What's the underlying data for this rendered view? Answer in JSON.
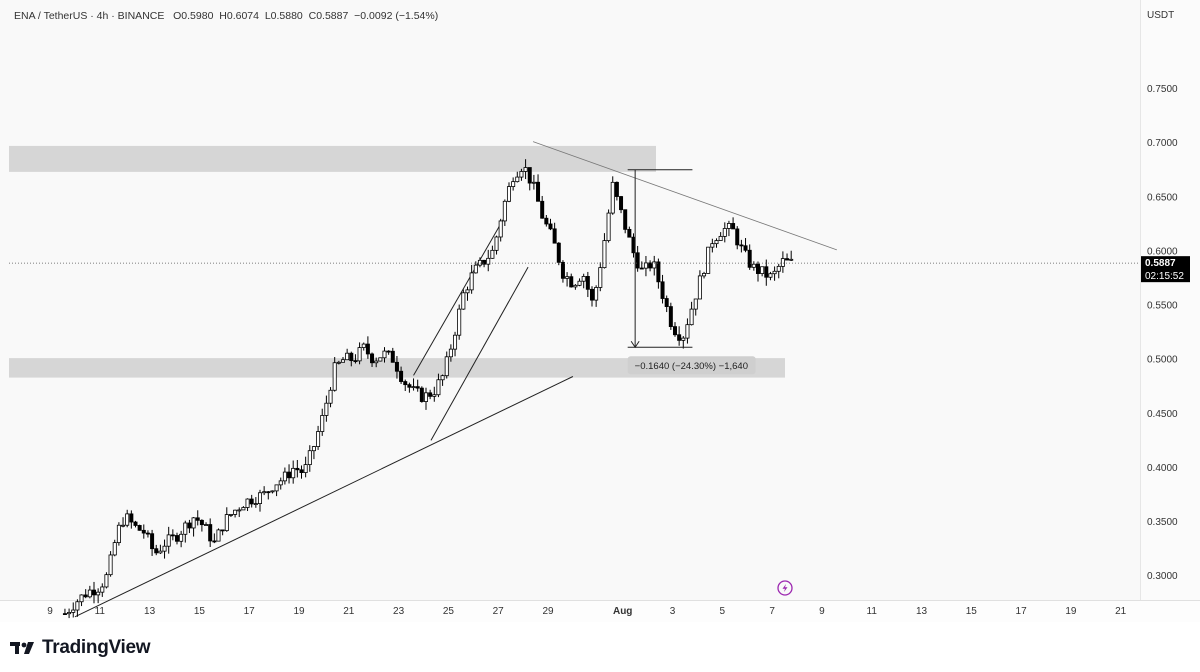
{
  "header": {
    "symbol": "ENA / TetherUS · 4h · BINANCE",
    "ohlc": {
      "open": "O0.5980",
      "high": "H0.6074",
      "low": "L0.5880",
      "close": "C0.5887"
    },
    "change": "−0.0092 (−1.54%)",
    "currency": "USDT"
  },
  "current_price": {
    "value": "0.5887",
    "countdown": "02:15:52",
    "level": 0.5887
  },
  "measure_label": "−0.1640 (−24.30%) −1,640",
  "brand": {
    "name": "TradingView"
  },
  "colors": {
    "up": "#000000",
    "down": "#000000",
    "zone": "#d6d6d6",
    "label_bg": "#cfcfcf",
    "price_tag": "#000000",
    "marker": "#9c27b0"
  },
  "chart_data": {
    "type": "candlestick",
    "symbol": "ENA / TetherUS",
    "interval": "4h",
    "exchange": "BINANCE",
    "y_ticks": [
      0.3,
      0.35,
      0.4,
      0.45,
      0.5,
      0.55,
      0.6,
      0.65,
      0.7,
      0.75
    ],
    "y_tick_labels": [
      "0.3000",
      "0.3500",
      "0.4000",
      "0.4500",
      "0.5000",
      "0.5500",
      "0.6000",
      "0.6500",
      "0.7000",
      "0.7500"
    ],
    "ylim": [
      0.26,
      0.805
    ],
    "x_tick_labels": [
      "9",
      "11",
      "13",
      "15",
      "17",
      "19",
      "21",
      "23",
      "25",
      "27",
      "29",
      "Aug",
      "3",
      "5",
      "7",
      "9",
      "11",
      "13",
      "15",
      "17",
      "19",
      "21"
    ],
    "x_tick_days": [
      9,
      11,
      13,
      15,
      17,
      19,
      21,
      23,
      25,
      27,
      29,
      32,
      34,
      36,
      38,
      40,
      42,
      44,
      46,
      48,
      50,
      52
    ],
    "xlim_days": [
      9,
      54
    ],
    "first_candle_day": 9.6,
    "candles_per_day": 6,
    "close_path": [
      [
        9.6,
        0.265
      ],
      [
        10.0,
        0.275
      ],
      [
        10.5,
        0.285
      ],
      [
        11.0,
        0.29
      ],
      [
        11.3,
        0.3
      ],
      [
        11.7,
        0.34
      ],
      [
        12.0,
        0.355
      ],
      [
        12.4,
        0.345
      ],
      [
        12.8,
        0.34
      ],
      [
        13.2,
        0.32
      ],
      [
        13.6,
        0.33
      ],
      [
        14.0,
        0.335
      ],
      [
        14.4,
        0.345
      ],
      [
        14.8,
        0.355
      ],
      [
        15.2,
        0.345
      ],
      [
        15.6,
        0.33
      ],
      [
        16.0,
        0.35
      ],
      [
        16.4,
        0.36
      ],
      [
        16.8,
        0.368
      ],
      [
        17.2,
        0.372
      ],
      [
        17.6,
        0.375
      ],
      [
        18.0,
        0.385
      ],
      [
        18.4,
        0.39
      ],
      [
        18.8,
        0.4
      ],
      [
        19.2,
        0.395
      ],
      [
        19.6,
        0.42
      ],
      [
        20.0,
        0.45
      ],
      [
        20.4,
        0.49
      ],
      [
        20.8,
        0.5
      ],
      [
        21.2,
        0.5
      ],
      [
        21.6,
        0.51
      ],
      [
        22.0,
        0.5
      ],
      [
        22.4,
        0.505
      ],
      [
        22.8,
        0.5
      ],
      [
        23.2,
        0.48
      ],
      [
        23.6,
        0.47
      ],
      [
        24.0,
        0.465
      ],
      [
        24.4,
        0.47
      ],
      [
        24.8,
        0.485
      ],
      [
        25.2,
        0.52
      ],
      [
        25.6,
        0.56
      ],
      [
        26.0,
        0.58
      ],
      [
        26.4,
        0.59
      ],
      [
        26.8,
        0.6
      ],
      [
        27.2,
        0.64
      ],
      [
        27.6,
        0.67
      ],
      [
        28.0,
        0.68
      ],
      [
        28.4,
        0.66
      ],
      [
        28.8,
        0.63
      ],
      [
        29.2,
        0.61
      ],
      [
        29.6,
        0.58
      ],
      [
        30.0,
        0.57
      ],
      [
        30.4,
        0.58
      ],
      [
        30.8,
        0.55
      ],
      [
        31.2,
        0.6
      ],
      [
        31.6,
        0.66
      ],
      [
        32.0,
        0.63
      ],
      [
        32.4,
        0.6
      ],
      [
        32.8,
        0.58
      ],
      [
        33.2,
        0.59
      ],
      [
        33.6,
        0.56
      ],
      [
        34.0,
        0.53
      ],
      [
        34.4,
        0.52
      ],
      [
        34.8,
        0.55
      ],
      [
        35.2,
        0.58
      ],
      [
        35.6,
        0.61
      ],
      [
        36.0,
        0.62
      ],
      [
        36.4,
        0.62
      ],
      [
        36.8,
        0.6
      ],
      [
        37.2,
        0.585
      ],
      [
        37.6,
        0.58
      ],
      [
        38.0,
        0.575
      ],
      [
        38.4,
        0.59
      ],
      [
        38.8,
        0.5887
      ]
    ],
    "price_line": 0.5887,
    "zones": [
      {
        "from": 0.673,
        "to": 0.697
      },
      {
        "from": 0.483,
        "to": 0.501
      }
    ],
    "trendlines": [
      {
        "name": "rising-support",
        "from": [
          10.0,
          0.262
        ],
        "to": [
          30.0,
          0.484
        ]
      },
      {
        "name": "descending-resistance",
        "from": [
          28.4,
          0.701
        ],
        "to": [
          40.6,
          0.601
        ]
      },
      {
        "name": "channel-upper",
        "from": [
          23.6,
          0.485
        ],
        "to": [
          27.3,
          0.633
        ]
      },
      {
        "name": "channel-lower",
        "from": [
          24.3,
          0.425
        ],
        "to": [
          28.2,
          0.585
        ]
      }
    ],
    "measurement": {
      "from_day": 32.2,
      "to_day": 34.8,
      "high": 0.675,
      "low": 0.511,
      "arrow_day": 32.5,
      "change": -0.164,
      "percent": -24.3,
      "ticks": -1640
    }
  }
}
